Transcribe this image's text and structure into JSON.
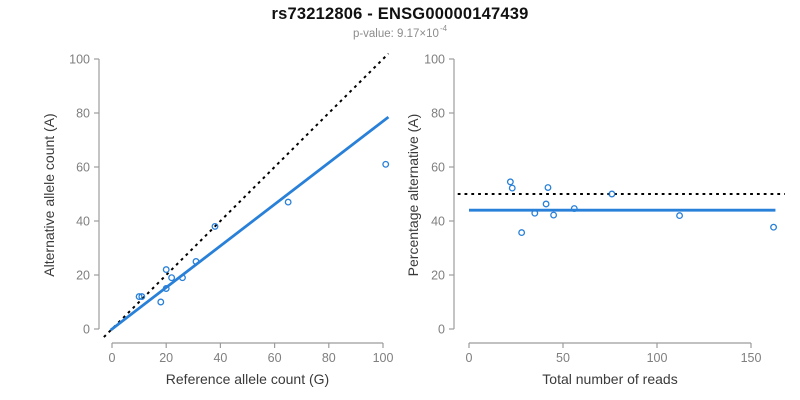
{
  "header": {
    "title": "rs73212806 - ENSG00000147439",
    "subtitle_prefix": "p-value: 9.17×10",
    "subtitle_exponent": "-4"
  },
  "colors": {
    "accent_blue": "#2980d9",
    "line_black": "#000000",
    "axis_line": "#9c9c9c",
    "tick_label": "#7f7f7f",
    "axis_title": "#3a3a3a",
    "subtitle_gray": "#8c8c8c"
  },
  "chart_data": [
    {
      "name": "allele-counts",
      "type": "scatter",
      "xlabel": "Reference allele count (G)",
      "ylabel": "Alternative allele count (A)",
      "xlim": [
        0,
        100
      ],
      "ylim": [
        0,
        100
      ],
      "x_ticks": [
        0,
        20,
        40,
        60,
        80,
        100
      ],
      "y_ticks": [
        0,
        20,
        40,
        60,
        80,
        100
      ],
      "grid": false,
      "legend": "none",
      "points": [
        [
          10,
          12
        ],
        [
          11,
          12
        ],
        [
          18,
          10
        ],
        [
          20,
          15
        ],
        [
          20,
          22
        ],
        [
          22,
          19
        ],
        [
          26,
          19
        ],
        [
          31,
          25
        ],
        [
          38,
          38
        ],
        [
          65,
          47
        ],
        [
          101,
          61
        ]
      ],
      "lines": [
        {
          "name": "identity-line",
          "style": "dotted",
          "color": "black",
          "from": [
            -3,
            -3
          ],
          "to": [
            102,
            102
          ]
        },
        {
          "name": "fit-line",
          "style": "solid",
          "color": "blue",
          "from": [
            -0.5,
            -0.4
          ],
          "to": [
            102,
            78.5
          ]
        }
      ]
    },
    {
      "name": "percentage-alternative",
      "type": "scatter",
      "xlabel": "Total number of reads",
      "ylabel": "Percentage alternative (A)",
      "xlim": [
        0,
        150
      ],
      "ylim": [
        0,
        100
      ],
      "x_ticks": [
        0,
        50,
        100,
        150
      ],
      "y_ticks": [
        0,
        20,
        40,
        60,
        80,
        100
      ],
      "grid": false,
      "legend": "none",
      "points": [
        [
          22,
          54.5
        ],
        [
          23,
          52.2
        ],
        [
          28,
          35.7
        ],
        [
          35,
          42.9
        ],
        [
          41,
          46.3
        ],
        [
          42,
          52.4
        ],
        [
          45,
          42.2
        ],
        [
          56,
          44.6
        ],
        [
          76,
          50
        ],
        [
          112,
          42
        ],
        [
          162,
          37.7
        ]
      ],
      "lines": [
        {
          "name": "expected-50pct-line",
          "style": "dotted",
          "color": "black",
          "from": [
            -6,
            50
          ],
          "to": [
            168,
            50
          ]
        },
        {
          "name": "mean-percentage-line",
          "style": "solid",
          "color": "blue",
          "from": [
            0,
            44
          ],
          "to": [
            163,
            44
          ]
        }
      ]
    }
  ]
}
